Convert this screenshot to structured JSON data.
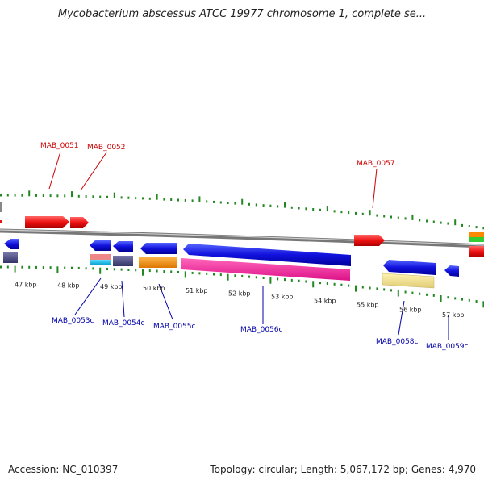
{
  "title": "Mycobacterium abscessus ATCC 19977 chromosome 1, complete se...",
  "footer": {
    "accession": "Accession: NC_010397",
    "summary": "Topology: circular; Length: 5,067,172 bp; Genes: 4,970"
  },
  "ticks": [
    "47 kbp",
    "48 kbp",
    "49 kbp",
    "50 kbp",
    "51 kbp",
    "52 kbp",
    "53 kbp",
    "54 kbp",
    "55 kbp",
    "56 kbp",
    "57 kbp"
  ],
  "labels_top": [
    "MAB_0051",
    "MAB_0052",
    "MAB_0057"
  ],
  "labels_bottom": [
    "MAB_0053c",
    "MAB_0054c",
    "MAB_0055c",
    "MAB_0056c",
    "MAB_0058c",
    "MAB_0059c"
  ],
  "colors": {
    "forward": "#ee1111",
    "reverse": "#1111dd",
    "label_forward": "#cc0000",
    "label_reverse": "#0000aa",
    "tick": "#228822",
    "backbone": "#888888"
  }
}
